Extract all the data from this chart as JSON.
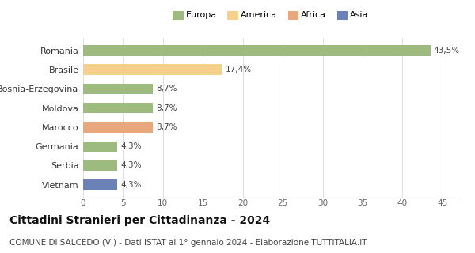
{
  "categories": [
    "Vietnam",
    "Serbia",
    "Germania",
    "Marocco",
    "Moldova",
    "Bosnia-Erzegovina",
    "Brasile",
    "Romania"
  ],
  "values": [
    4.3,
    4.3,
    4.3,
    8.7,
    8.7,
    8.7,
    17.4,
    43.5
  ],
  "labels": [
    "4,3%",
    "4,3%",
    "4,3%",
    "8,7%",
    "8,7%",
    "8,7%",
    "17,4%",
    "43,5%"
  ],
  "colors": [
    "#6b82b8",
    "#9dba7f",
    "#9dba7f",
    "#e8a87c",
    "#9dba7f",
    "#9dba7f",
    "#f5d08a",
    "#9dba7f"
  ],
  "legend_labels": [
    "Europa",
    "America",
    "Africa",
    "Asia"
  ],
  "legend_colors": [
    "#9dba7f",
    "#f5d08a",
    "#e8a87c",
    "#6b82b8"
  ],
  "xlim": [
    0,
    47
  ],
  "xticks": [
    0,
    5,
    10,
    15,
    20,
    25,
    30,
    35,
    40,
    45
  ],
  "title": "Cittadini Stranieri per Cittadinanza - 2024",
  "subtitle": "COMUNE DI SALCEDO (VI) - Dati ISTAT al 1° gennaio 2024 - Elaborazione TUTTITALIA.IT",
  "title_fontsize": 10,
  "subtitle_fontsize": 7.5,
  "bar_height": 0.55,
  "bg_color": "#ffffff",
  "grid_color": "#dddddd"
}
